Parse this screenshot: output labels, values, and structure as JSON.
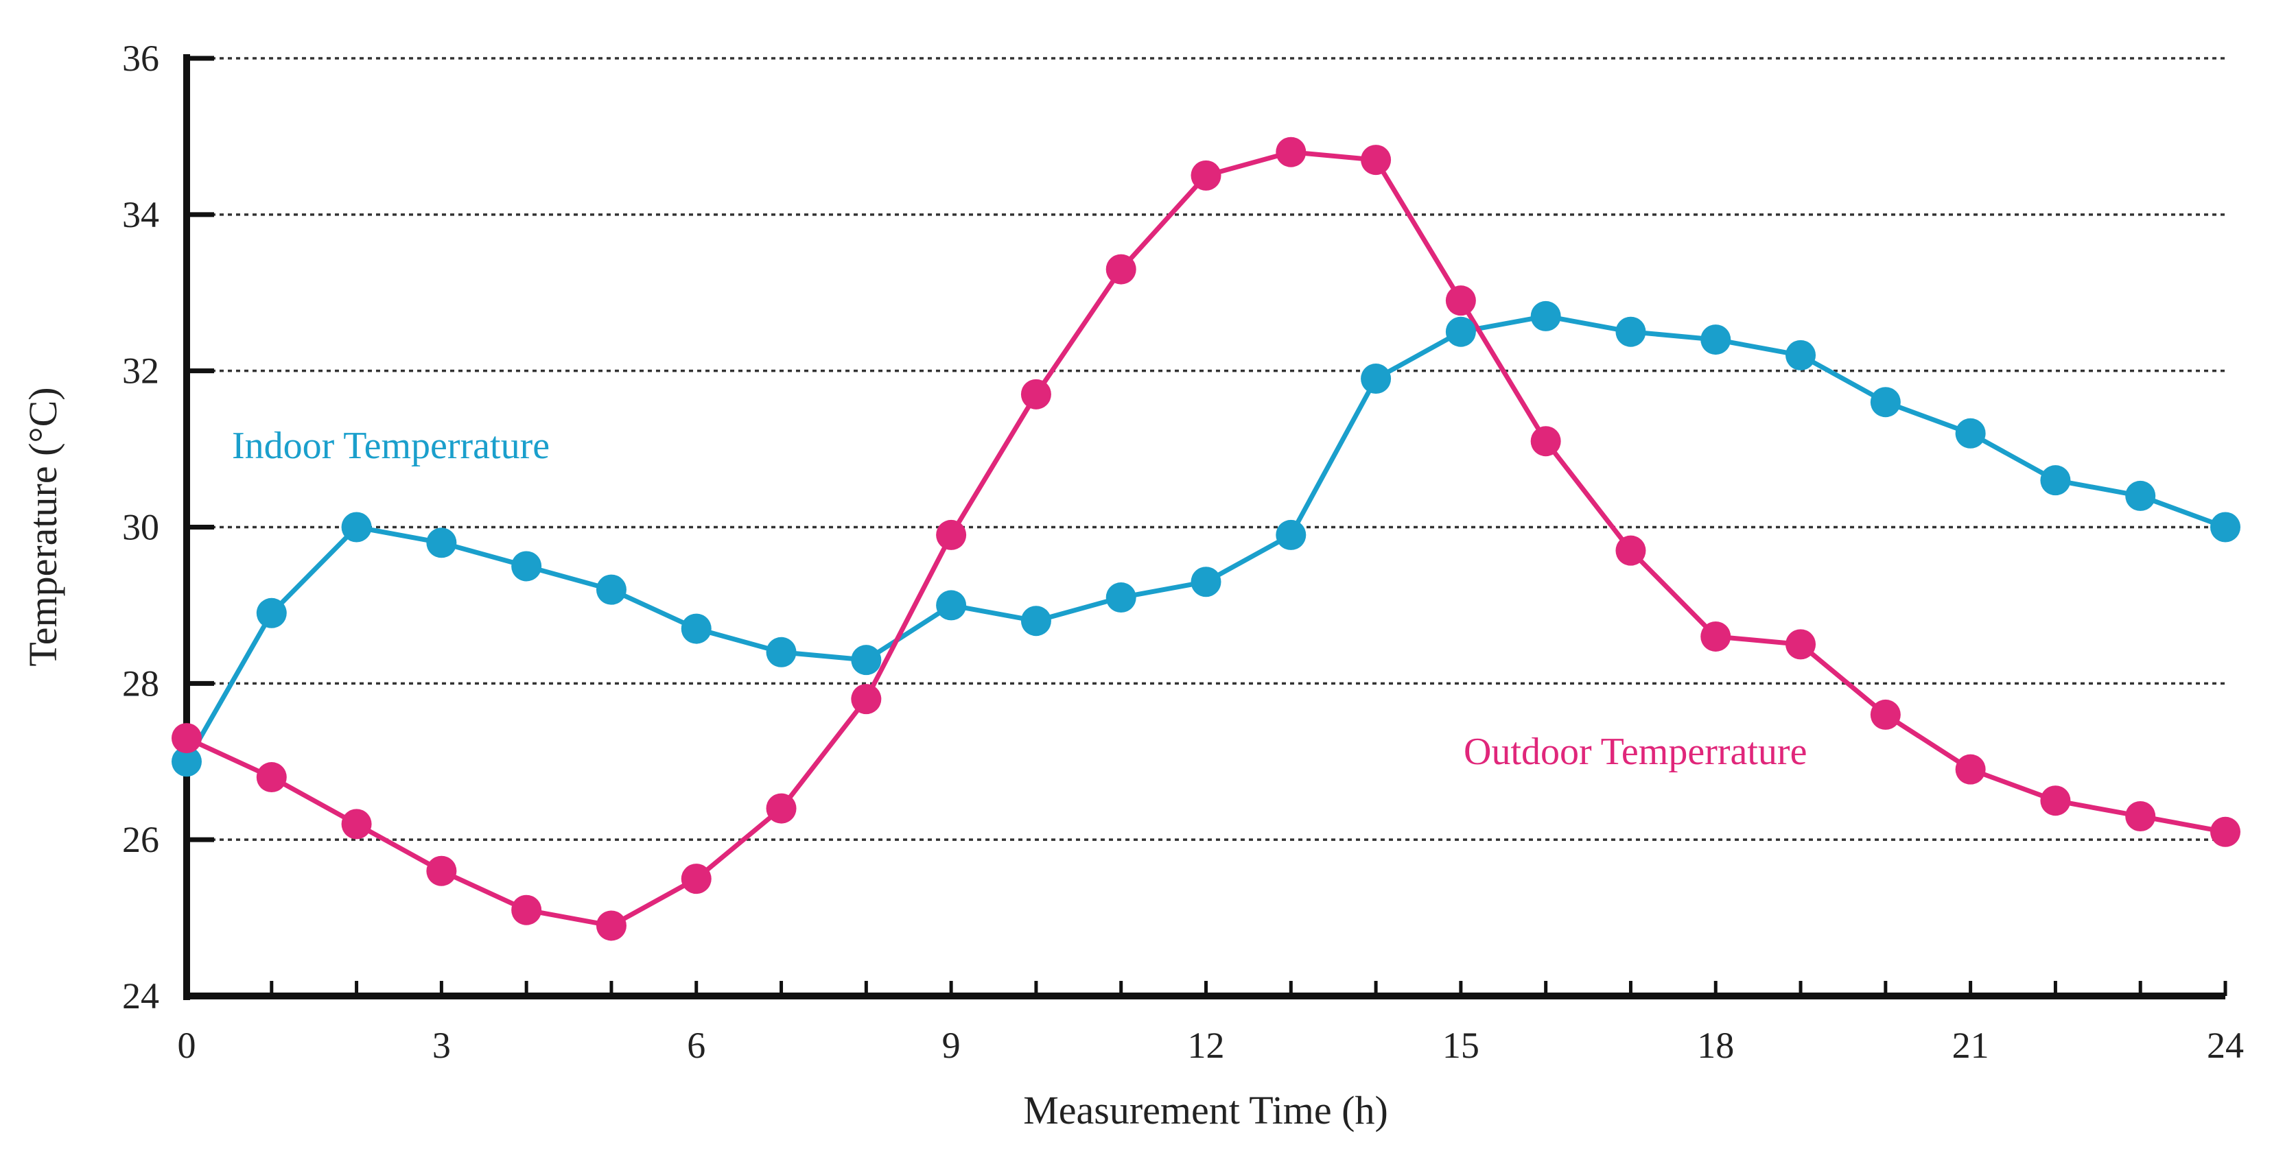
{
  "chart_data": {
    "type": "line",
    "title": "",
    "xlabel": "Measurement Time (h)",
    "ylabel": "Temperature (°C)",
    "xlim": [
      0,
      24
    ],
    "ylim": [
      24,
      36
    ],
    "xticks": [
      0,
      3,
      6,
      9,
      12,
      15,
      18,
      21,
      24
    ],
    "yticks": [
      24,
      26,
      28,
      30,
      32,
      34,
      36
    ],
    "grid": "horizontal dotted",
    "x": [
      0,
      1,
      2,
      3,
      4,
      5,
      6,
      7,
      8,
      9,
      10,
      11,
      12,
      13,
      14,
      15,
      16,
      17,
      18,
      19,
      20,
      21,
      22,
      23,
      24
    ],
    "series": [
      {
        "name": "Indoor Temperrature",
        "color": "#1a9fcc",
        "values": [
          27.0,
          28.9,
          30.0,
          29.8,
          29.5,
          29.2,
          28.7,
          28.4,
          28.3,
          29.0,
          28.8,
          29.1,
          29.3,
          29.9,
          31.9,
          32.5,
          32.7,
          32.5,
          32.4,
          32.2,
          31.6,
          31.2,
          30.6,
          30.4,
          30.0
        ]
      },
      {
        "name": "Outdoor Temperrature",
        "color": "#e0267a",
        "values": [
          27.3,
          26.8,
          26.2,
          25.6,
          25.1,
          24.9,
          25.5,
          26.4,
          27.8,
          29.9,
          31.7,
          33.3,
          34.5,
          34.8,
          34.7,
          32.9,
          31.1,
          29.7,
          28.6,
          28.5,
          27.6,
          26.9,
          26.5,
          26.3,
          26.1
        ]
      }
    ]
  }
}
